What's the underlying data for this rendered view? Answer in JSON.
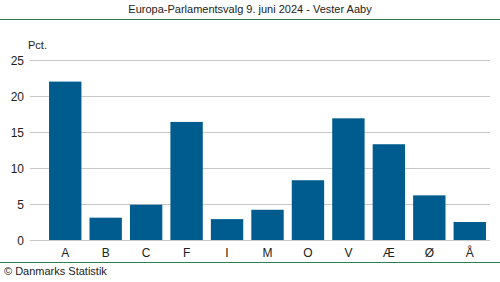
{
  "chart_data": {
    "type": "bar",
    "title": "Europa-Parlamentsvalg 9. juni 2024 - Vester Aaby",
    "y_label": "Pct.",
    "annotations": [
      "© Danmarks Statistik"
    ],
    "categories": [
      "A",
      "B",
      "C",
      "F",
      "I",
      "M",
      "O",
      "V",
      "Æ",
      "Ø",
      "Å"
    ],
    "values": [
      22.0,
      3.1,
      4.9,
      16.4,
      2.9,
      4.2,
      8.3,
      16.9,
      13.3,
      6.2,
      2.5
    ],
    "color": "#005b8e",
    "ylim": [
      0,
      25
    ],
    "yticks": [
      0,
      5,
      10,
      15,
      20,
      25
    ],
    "grid": true
  }
}
